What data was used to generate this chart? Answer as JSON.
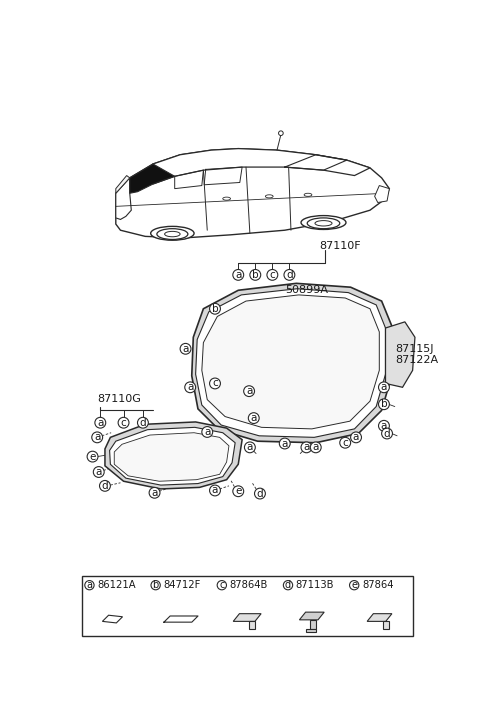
{
  "bg_color": "#ffffff",
  "line_color": "#2a2a2a",
  "text_color": "#1a1a1a",
  "part_labels": {
    "a": "86121A",
    "b": "84712F",
    "c": "87864B",
    "d": "87113B",
    "e": "87864"
  },
  "legend_items": [
    [
      "a",
      "86121A"
    ],
    [
      "b",
      "84712F"
    ],
    [
      "c",
      "87864B"
    ],
    [
      "d",
      "87113B"
    ],
    [
      "e",
      "87864"
    ]
  ],
  "part_numbers_right": [
    "87110F",
    "50899A",
    "87115J",
    "87122A"
  ],
  "part_number_left": "87110G"
}
